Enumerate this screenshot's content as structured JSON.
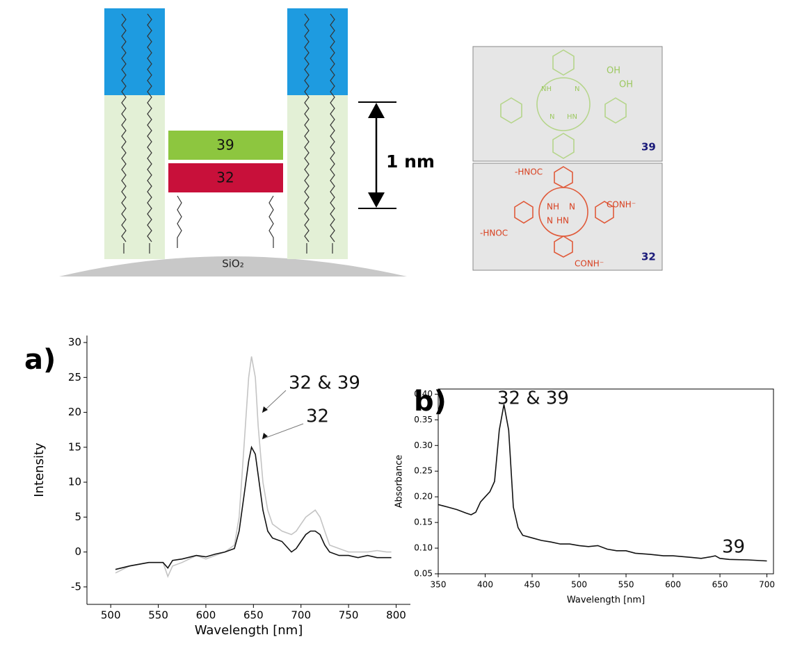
{
  "diagram": {
    "layer_labels": [
      "39",
      "32"
    ],
    "distance": "1 nm",
    "substrate": "SiO₂",
    "structures": [
      {
        "label": "39",
        "groups": [
          "OH",
          "OH",
          "NH",
          "N",
          "N",
          "HN"
        ]
      },
      {
        "label": "32",
        "groups": [
          "-HNOC",
          "CONH⁻",
          "NH",
          "N",
          "N",
          "HN",
          "-HNOC",
          "CONH⁻"
        ]
      }
    ]
  },
  "chart_data": [
    {
      "type": "line",
      "panel_label": "a)",
      "x_label": "Wavelength [nm]",
      "y_label": "Intensity",
      "x": [
        505,
        520,
        540,
        555,
        560,
        565,
        575,
        590,
        600,
        610,
        620,
        630,
        635,
        640,
        645,
        648,
        652,
        655,
        660,
        665,
        670,
        680,
        690,
        695,
        700,
        705,
        710,
        715,
        720,
        725,
        730,
        740,
        750,
        760,
        770,
        780,
        790,
        795
      ],
      "series": [
        {
          "name": "32 & 39",
          "color": "#c4c4c4",
          "values": [
            -3,
            -2,
            -1.5,
            -1.5,
            -3.5,
            -2,
            -1.5,
            -0.5,
            -1,
            -0.5,
            0,
            1,
            5,
            15,
            25,
            28,
            25,
            18,
            10,
            6,
            4,
            3,
            2.5,
            3,
            4,
            5,
            5.5,
            6,
            5,
            3,
            1,
            0.5,
            0,
            0,
            0,
            0.2,
            0,
            0
          ]
        },
        {
          "name": "32",
          "color": "#111111",
          "values": [
            -2.5,
            -2.0,
            -1.5,
            -1.5,
            -2.3,
            -1.2,
            -1.0,
            -0.5,
            -0.7,
            -0.3,
            0,
            0.5,
            3,
            8,
            13,
            15,
            14,
            11,
            6,
            3,
            2,
            1.5,
            0,
            0.5,
            1.5,
            2.5,
            3,
            3,
            2.5,
            1,
            0,
            -0.5,
            -0.5,
            -0.8,
            -0.5,
            -0.8,
            -0.8,
            -0.8
          ]
        }
      ],
      "xlim": [
        475,
        815
      ],
      "ylim": [
        -7.5,
        31
      ],
      "xticks": [
        500,
        550,
        600,
        650,
        700,
        750,
        800
      ],
      "yticks": [
        -5,
        0,
        5,
        10,
        15,
        20,
        25,
        30
      ]
    },
    {
      "type": "line",
      "panel_label": "b)",
      "x_label": "Wavelength [nm]",
      "y_label": "Absorbance",
      "annotations": [
        "32 & 39",
        "39"
      ],
      "x": [
        350,
        360,
        370,
        380,
        385,
        390,
        395,
        400,
        405,
        410,
        415,
        420,
        425,
        430,
        435,
        440,
        450,
        460,
        470,
        480,
        490,
        500,
        510,
        520,
        530,
        540,
        550,
        560,
        575,
        590,
        600,
        620,
        630,
        640,
        645,
        650,
        660,
        680,
        700
      ],
      "values": [
        0.185,
        0.18,
        0.175,
        0.168,
        0.165,
        0.17,
        0.19,
        0.2,
        0.21,
        0.23,
        0.33,
        0.38,
        0.33,
        0.18,
        0.14,
        0.125,
        0.12,
        0.115,
        0.112,
        0.108,
        0.108,
        0.105,
        0.103,
        0.105,
        0.098,
        0.095,
        0.095,
        0.09,
        0.088,
        0.085,
        0.085,
        0.082,
        0.08,
        0.083,
        0.085,
        0.08,
        0.078,
        0.077,
        0.075
      ],
      "color": "#111111",
      "xlim": [
        350,
        707
      ],
      "ylim": [
        0.05,
        0.41
      ],
      "xticks": [
        350,
        400,
        450,
        500,
        550,
        600,
        650,
        700
      ],
      "yticks": [
        0.05,
        {
          "value": 0.1,
          "label": "0.10"
        },
        0.15,
        {
          "value": 0.2,
          "label": "0.20"
        },
        0.25,
        {
          "value": 0.3,
          "label": "0.30"
        },
        0.35,
        {
          "value": 0.4,
          "label": "0.40"
        }
      ]
    }
  ]
}
